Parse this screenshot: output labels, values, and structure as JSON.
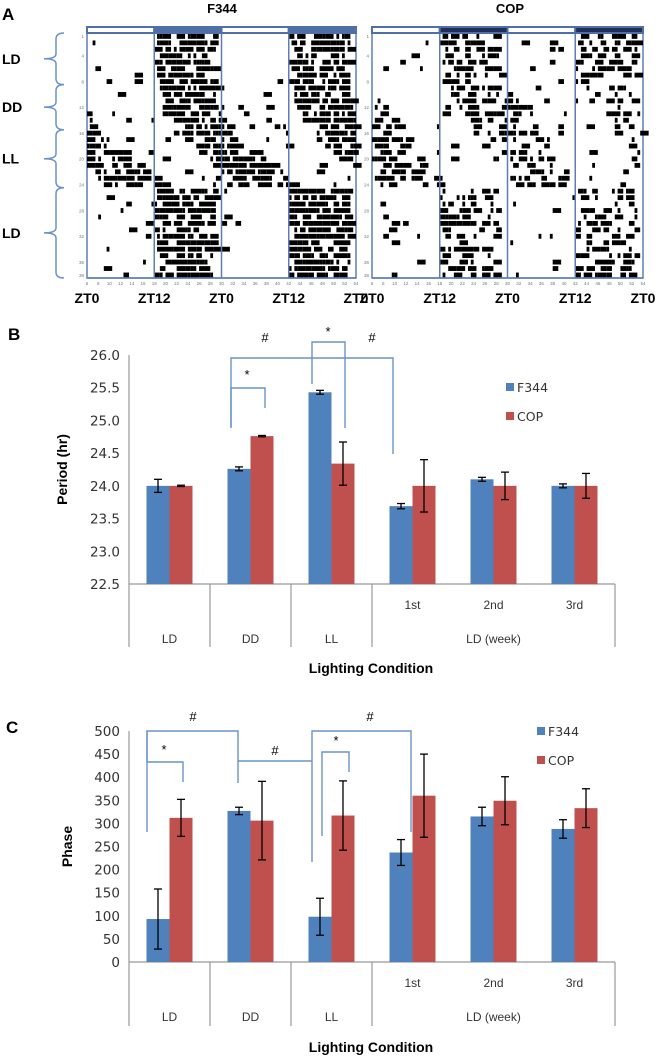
{
  "panel_labels": {
    "a": "A",
    "b": "B",
    "c": "C"
  },
  "actograms": {
    "titles": [
      "F344",
      "COP"
    ],
    "condition_labels": [
      "LD",
      "DD",
      "LL",
      "LD"
    ],
    "condition_day_ranges": [
      [
        1,
        8
      ],
      [
        9,
        15
      ],
      [
        16,
        24
      ],
      [
        25,
        38
      ]
    ],
    "zt_labels": [
      "ZT0",
      "ZT12",
      "ZT0",
      "ZT12",
      "ZT0"
    ],
    "day_ticks": [
      1,
      4,
      8,
      12,
      16,
      20,
      24,
      28,
      32,
      36,
      38
    ],
    "hour_ticks": [
      6,
      8,
      10,
      12,
      14,
      16,
      18,
      20,
      22,
      24,
      26,
      28,
      30,
      32,
      34,
      36,
      38,
      40,
      42,
      44,
      46,
      48,
      50,
      52,
      54
    ],
    "light_bar_color": "#4f6fa6",
    "line_color": "#5b7fb5"
  },
  "colors": {
    "f344": "#4f81bd",
    "cop": "#c0504d",
    "bracket": "#6a93c8",
    "axis": "#999999",
    "text": "#333333"
  },
  "chart_data": [
    {
      "type": "bar",
      "panel": "B",
      "title": "",
      "xlabel": "Lighting Condition",
      "ylabel": "Period (hr)",
      "ylim": [
        22.5,
        26.0
      ],
      "yticks": [
        "22.5",
        "23.0",
        "23.5",
        "24.0",
        "24.5",
        "25.0",
        "25.5",
        "26.0"
      ],
      "categories": [
        "LD",
        "DD",
        "LL",
        "1st",
        "2nd",
        "3rd"
      ],
      "category_groups": [
        {
          "label": "LD",
          "members": [
            "LD"
          ]
        },
        {
          "label": "DD",
          "members": [
            "DD"
          ]
        },
        {
          "label": "LL",
          "members": [
            "LL"
          ]
        },
        {
          "label": "LD (week)",
          "members": [
            "1st",
            "2nd",
            "3rd"
          ]
        }
      ],
      "series": [
        {
          "name": "F344",
          "values": [
            24.0,
            24.26,
            25.43,
            23.69,
            24.1,
            24.0
          ],
          "errors": [
            0.1,
            0.03,
            0.03,
            0.04,
            0.03,
            0.03
          ]
        },
        {
          "name": "COP",
          "values": [
            24.0,
            24.76,
            24.34,
            24.0,
            24.0,
            24.0
          ],
          "errors": [
            0.01,
            0.01,
            0.33,
            0.4,
            0.21,
            0.19
          ]
        }
      ],
      "legend": {
        "entries": [
          "F344",
          "COP"
        ],
        "position": "top-right"
      },
      "annotations": [
        {
          "symbol": "#",
          "between": [
            "DD",
            "1st"
          ]
        },
        {
          "symbol": "*",
          "between": [
            "DD F344",
            "DD COP"
          ]
        },
        {
          "symbol": "*",
          "between": [
            "LL F344",
            "LL COP"
          ]
        },
        {
          "symbol": "#",
          "between": [
            "LL",
            "1st"
          ]
        }
      ],
      "grid": false
    },
    {
      "type": "bar",
      "panel": "C",
      "title": "",
      "xlabel": "Lighting Condition",
      "ylabel": "Phase",
      "ylim": [
        0,
        500
      ],
      "yticks": [
        "0",
        "50",
        "100",
        "150",
        "200",
        "250",
        "300",
        "350",
        "400",
        "450",
        "500"
      ],
      "categories": [
        "LD",
        "DD",
        "LL",
        "1st",
        "2nd",
        "3rd"
      ],
      "category_groups": [
        {
          "label": "LD",
          "members": [
            "LD"
          ]
        },
        {
          "label": "DD",
          "members": [
            "DD"
          ]
        },
        {
          "label": "LL",
          "members": [
            "LL"
          ]
        },
        {
          "label": "LD (week)",
          "members": [
            "1st",
            "2nd",
            "3rd"
          ]
        }
      ],
      "series": [
        {
          "name": "F344",
          "values": [
            93,
            327,
            98,
            237,
            315,
            288
          ],
          "errors": [
            65,
            8,
            40,
            28,
            20,
            20
          ]
        },
        {
          "name": "COP",
          "values": [
            312,
            306,
            317,
            360,
            349,
            333
          ],
          "errors": [
            40,
            85,
            75,
            90,
            52,
            42
          ]
        }
      ],
      "legend": {
        "entries": [
          "F344",
          "COP"
        ],
        "position": "top-right"
      },
      "annotations": [
        {
          "symbol": "#",
          "between": [
            "LD",
            "DD"
          ]
        },
        {
          "symbol": "*",
          "between": [
            "LD F344",
            "LD COP"
          ]
        },
        {
          "symbol": "#",
          "between": [
            "DD",
            "LL"
          ]
        },
        {
          "symbol": "*",
          "between": [
            "LL F344",
            "LL COP"
          ]
        },
        {
          "symbol": "#",
          "between": [
            "LL",
            "1st"
          ]
        }
      ],
      "grid": false
    }
  ]
}
